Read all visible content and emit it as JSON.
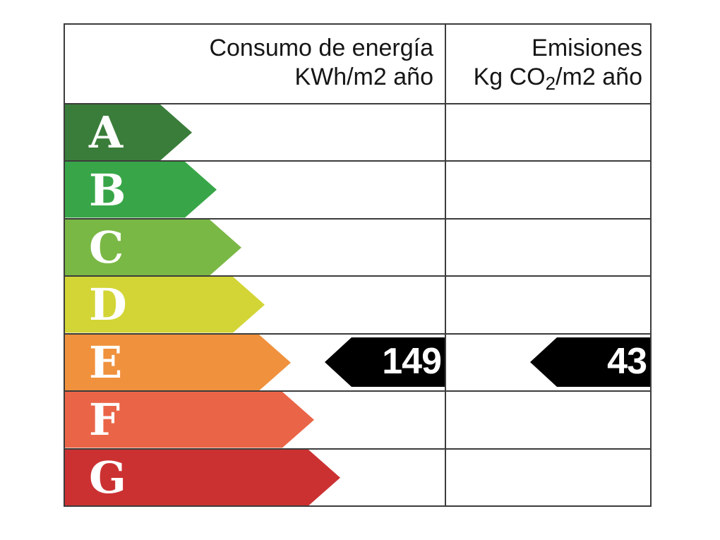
{
  "header": {
    "consumption": {
      "line1": "Consumo de energía",
      "unit_pre": "KWh/m",
      "unit_num": "2",
      "unit_post": " año"
    },
    "emissions": {
      "line1": "Emisiones",
      "unit_pre": "Kg CO",
      "unit_sub": "2",
      "unit_mid": "/m",
      "unit_num": "2",
      "unit_post": " año"
    }
  },
  "ratings": [
    {
      "letter": "A",
      "color": "#3a7d3a",
      "body_width": 135,
      "tip_width": 45
    },
    {
      "letter": "B",
      "color": "#38a648",
      "body_width": 170,
      "tip_width": 45
    },
    {
      "letter": "C",
      "color": "#7ab845",
      "body_width": 205,
      "tip_width": 45
    },
    {
      "letter": "D",
      "color": "#d2d535",
      "body_width": 238,
      "tip_width": 45
    },
    {
      "letter": "E",
      "color": "#f0913d",
      "body_width": 275,
      "tip_width": 45
    },
    {
      "letter": "F",
      "color": "#ea6547",
      "body_width": 308,
      "tip_width": 45
    },
    {
      "letter": "G",
      "color": "#cc3132",
      "body_width": 345,
      "tip_width": 45
    }
  ],
  "markers": {
    "rating_row": "E",
    "consumption_value": "149",
    "emissions_value": "43",
    "color": "#000000",
    "text_color": "#ffffff"
  },
  "chart_data": {
    "type": "bar",
    "categories": [
      "A",
      "B",
      "C",
      "D",
      "E",
      "F",
      "G"
    ],
    "bar_relative_lengths": [
      180,
      215,
      250,
      283,
      320,
      353,
      390
    ],
    "bar_colors": [
      "#3a7d3a",
      "#38a648",
      "#7ab845",
      "#d2d535",
      "#f0913d",
      "#ea6547",
      "#cc3132"
    ],
    "columns": [
      "Consumo de energía KWh/m2 año",
      "Emisiones Kg CO2/m2 año"
    ],
    "rating": "E",
    "consumption_kwh_m2_year": 149,
    "emissions_kg_co2_m2_year": 43,
    "legend_position": "none",
    "grid": "table-lines"
  }
}
